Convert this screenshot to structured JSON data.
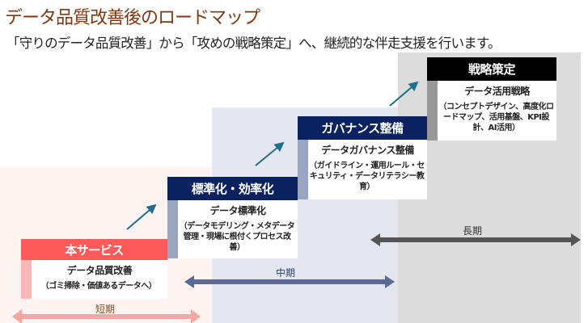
{
  "title": "データ品質改善後のロードマップ",
  "subtitle": "「守りのデータ品質改善」から「攻めの戦略策定」へ、継続的な伴走支援を行います。",
  "colors": {
    "title": "#7b3a12",
    "service": "#ff5a5a",
    "navy": "#0b2260",
    "black": "#000000",
    "arrow": "#1f6e8c",
    "short_zone": "#fdf3f0",
    "mid_zone": "#e4e7ef",
    "long_zone": "#dcdcdc"
  },
  "steps": [
    {
      "header": "本サービス",
      "title": "データ品質改善",
      "detail": "（ゴミ掃除・価値あるデータへ）"
    },
    {
      "header": "標準化・効率化",
      "title": "データ標準化",
      "detail": "（データモデリング・メタデータ管理・現場に根付くプロセス改善）"
    },
    {
      "header": "ガバナンス整備",
      "title": "データガバナンス整備",
      "detail": "（ガイドライン・運用ルール・セキュリティ・データリテラシー教育）"
    },
    {
      "header": "戦略策定",
      "title": "データ活用戦略",
      "detail": "（コンセプトデザイン、高度化ロードマップ、活用基盤、KPI設計、AI活用）"
    }
  ],
  "terms": {
    "short": "短期",
    "mid": "中期",
    "long": "長期"
  }
}
